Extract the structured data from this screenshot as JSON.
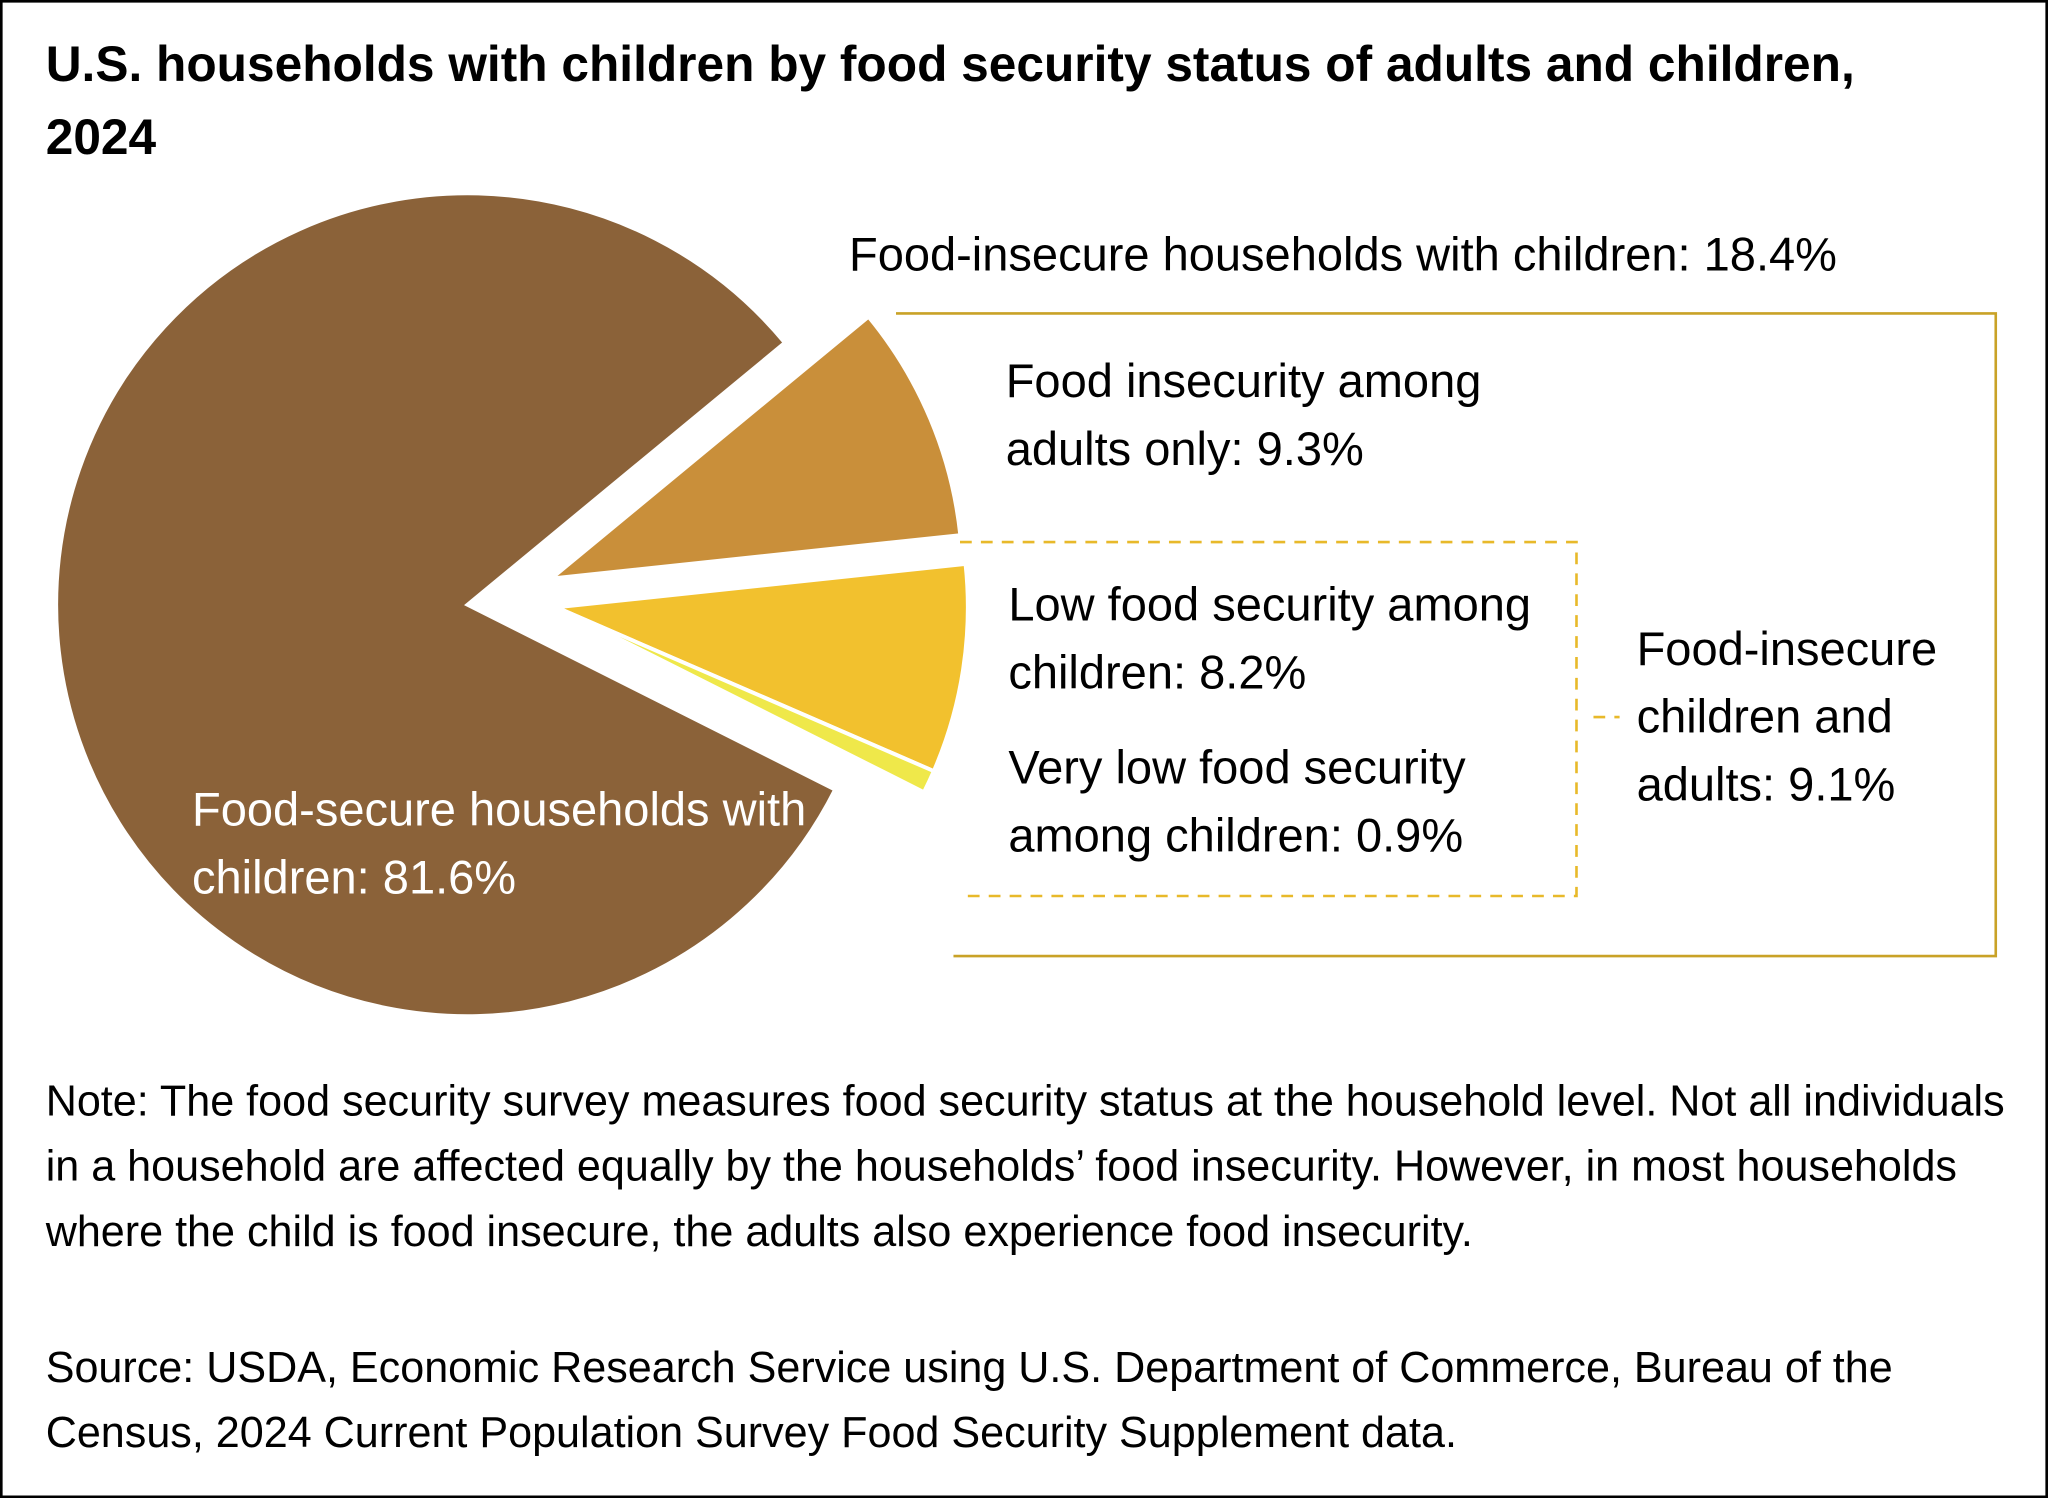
{
  "chart_data": {
    "type": "pie",
    "title": "U.S. households with children by food security status of adults and children, 2024",
    "values": [
      81.6,
      9.3,
      8.2,
      0.9
    ],
    "value_labels": [
      "Food-secure households with children: 81.6%",
      "Food insecurity among adults only: 9.3%",
      "Low food security among children: 8.2%",
      "Very low food security among children: 0.9%"
    ],
    "colors": [
      "#8b6239",
      "#c98f3a",
      "#f2c12e",
      "#efe84a"
    ],
    "groups": [
      {
        "label": "Food-insecure households with children: 18.4%",
        "value": 18.4
      },
      {
        "label": "Food-insecure children and adults: 9.1%",
        "value": 9.1
      }
    ],
    "note": "Note: The food security survey measures food security status at the household level. Not all individuals in a household are affected equally by the households’ food insecurity. However, in most households where the child is food insecure, the adults also experience food insecurity.",
    "source": "Source: USDA, Economic Research Service using U.S. Department of Commerce, Bureau of the Census, 2024 Current Population Survey Food Security Supplement data."
  }
}
